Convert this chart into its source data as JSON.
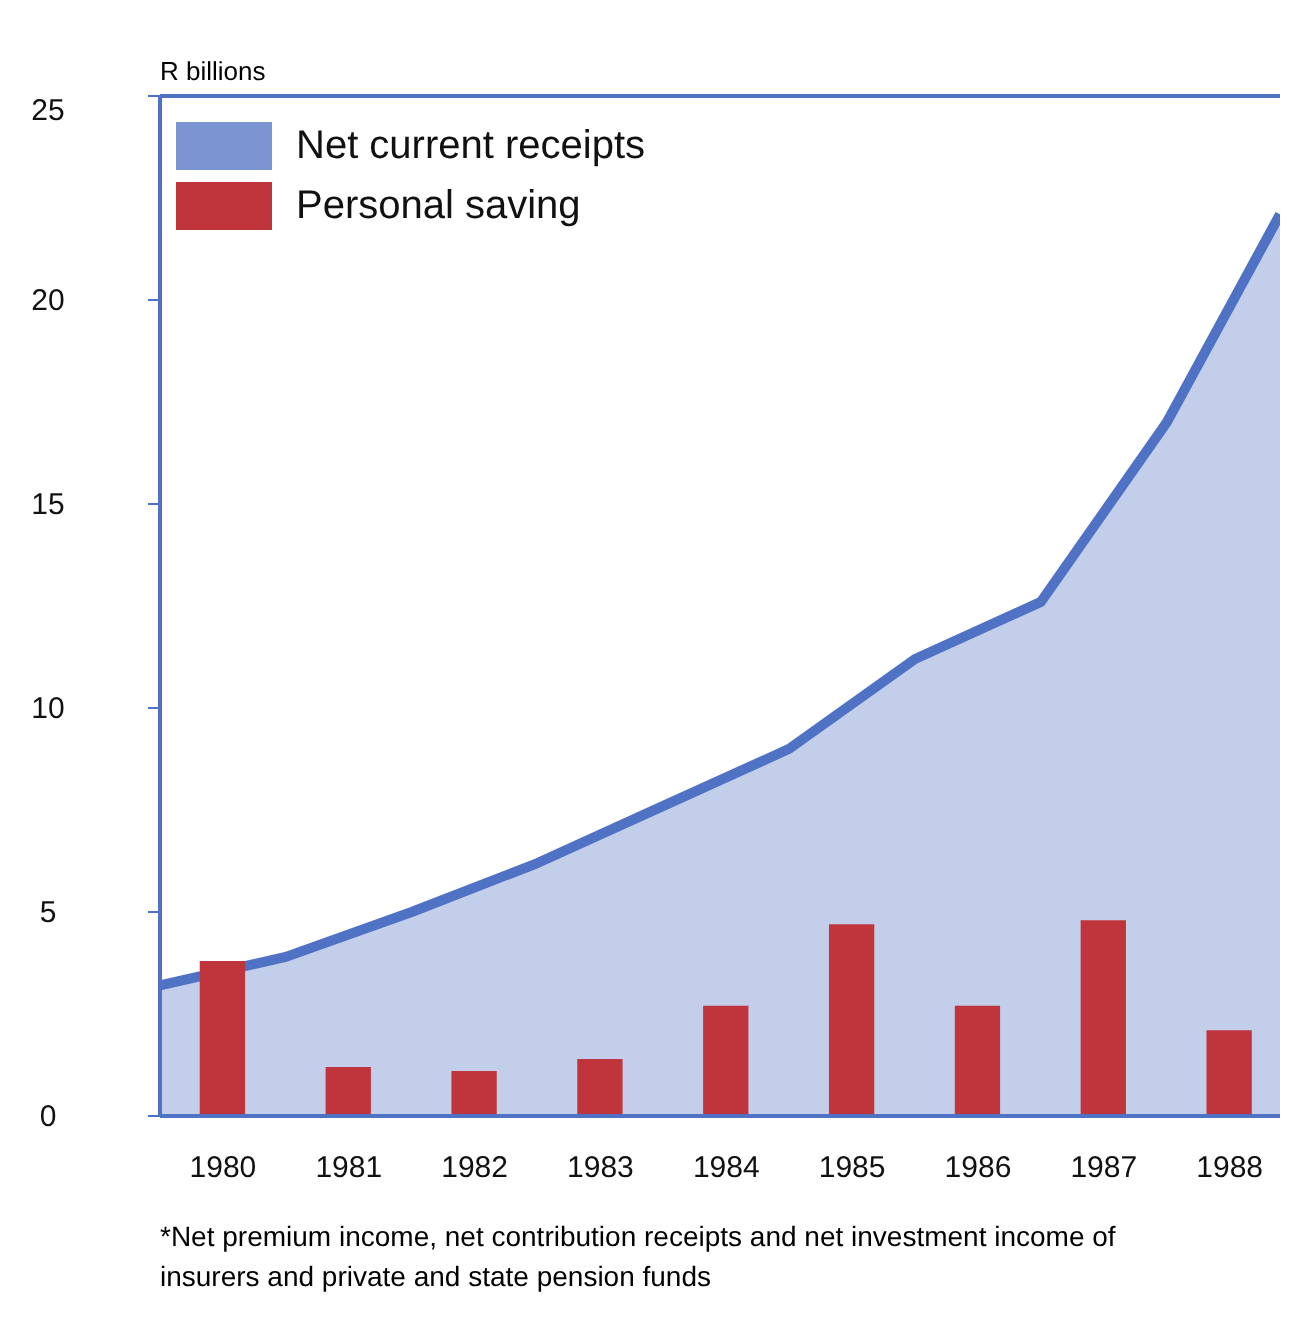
{
  "chart_data": {
    "type": "bar",
    "ylabel": "R billions",
    "x": [
      1980,
      1981,
      1982,
      1983,
      1984,
      1985,
      1986,
      1987,
      1988
    ],
    "series": [
      {
        "name": "Net current receipts",
        "type": "area",
        "color": "#4f72c4",
        "x": [
          1979.5,
          1980.5,
          1981.5,
          1982.5,
          1983.5,
          1984.5,
          1985.5,
          1986.5,
          1987.5,
          1988.4
        ],
        "values": [
          3.2,
          3.9,
          5.0,
          6.2,
          7.6,
          9.0,
          11.2,
          12.6,
          17.0,
          22.1
        ]
      },
      {
        "name": "Personal saving",
        "color": "#c0343c",
        "values": [
          3.8,
          1.2,
          1.1,
          1.4,
          2.7,
          4.7,
          2.7,
          4.8,
          2.1
        ]
      }
    ],
    "xlim": [
      1979.5,
      1988.4
    ],
    "xticks": [
      1980,
      1981,
      1982,
      1983,
      1984,
      1985,
      1986,
      1987,
      1988
    ],
    "ylim": [
      0,
      25
    ],
    "yticks": [
      0,
      5,
      10,
      15,
      20,
      25
    ],
    "grid": false,
    "legend": "top left",
    "annotations": [
      "*Net premium income, net contribution receipts and net investment income of insurers and private and state pension funds"
    ]
  }
}
